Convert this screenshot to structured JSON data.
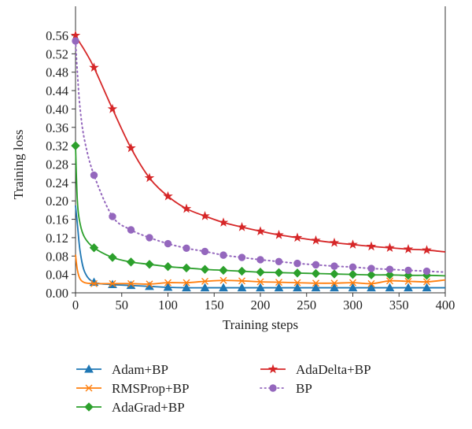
{
  "chart_data": {
    "type": "line",
    "title": "",
    "xlabel": "Training steps",
    "ylabel": "Training loss",
    "xlim": [
      0,
      400
    ],
    "ylim": [
      0,
      0.56
    ],
    "xticks": [
      "0",
      "50",
      "100",
      "150",
      "200",
      "250",
      "300",
      "350",
      "400"
    ],
    "yticks": [
      "0.00",
      "0.04",
      "0.08",
      "0.12",
      "0.16",
      "0.20",
      "0.24",
      "0.28",
      "0.32",
      "0.36",
      "0.40",
      "0.44",
      "0.48",
      "0.52",
      "0.56"
    ],
    "grid": false,
    "legend_placement": "bottom",
    "x": [
      0,
      2,
      5,
      10,
      20,
      40,
      60,
      80,
      100,
      120,
      140,
      160,
      180,
      200,
      220,
      240,
      260,
      280,
      300,
      320,
      340,
      360,
      380,
      400
    ],
    "series": [
      {
        "name": "Adam+BP",
        "color": "#1f77b4",
        "marker": "triangle",
        "style": "solid",
        "values": [
          0.19,
          0.15,
          0.09,
          0.045,
          0.023,
          0.018,
          0.016,
          0.014,
          0.012,
          0.011,
          0.011,
          0.011,
          0.011,
          0.011,
          0.011,
          0.011,
          0.011,
          0.011,
          0.011,
          0.011,
          0.011,
          0.011,
          0.011,
          0.011
        ]
      },
      {
        "name": "RMSProp+BP",
        "color": "#ff7f0e",
        "marker": "x",
        "style": "solid",
        "values": [
          0.083,
          0.05,
          0.03,
          0.022,
          0.02,
          0.02,
          0.02,
          0.019,
          0.022,
          0.022,
          0.025,
          0.027,
          0.026,
          0.024,
          0.023,
          0.022,
          0.021,
          0.021,
          0.022,
          0.02,
          0.026,
          0.025,
          0.024,
          0.028
        ]
      },
      {
        "name": "AdaGrad+BP",
        "color": "#2ca02c",
        "marker": "diamond",
        "style": "solid",
        "values": [
          0.32,
          0.2,
          0.15,
          0.12,
          0.098,
          0.077,
          0.067,
          0.062,
          0.057,
          0.054,
          0.051,
          0.049,
          0.047,
          0.045,
          0.044,
          0.043,
          0.042,
          0.041,
          0.04,
          0.039,
          0.039,
          0.038,
          0.038,
          0.037
        ]
      },
      {
        "name": "AdaDelta+BP",
        "color": "#d62728",
        "marker": "star",
        "style": "solid",
        "values": [
          0.56,
          0.553,
          0.543,
          0.527,
          0.49,
          0.4,
          0.315,
          0.25,
          0.21,
          0.183,
          0.167,
          0.153,
          0.143,
          0.134,
          0.126,
          0.12,
          0.114,
          0.109,
          0.105,
          0.101,
          0.098,
          0.095,
          0.093,
          0.089
        ]
      },
      {
        "name": "BP",
        "color": "#9467bd",
        "marker": "circle",
        "style": "dotted",
        "values": [
          0.548,
          0.48,
          0.4,
          0.33,
          0.256,
          0.166,
          0.137,
          0.12,
          0.107,
          0.097,
          0.09,
          0.082,
          0.077,
          0.072,
          0.068,
          0.064,
          0.061,
          0.058,
          0.056,
          0.053,
          0.051,
          0.049,
          0.047,
          0.045
        ]
      }
    ]
  }
}
